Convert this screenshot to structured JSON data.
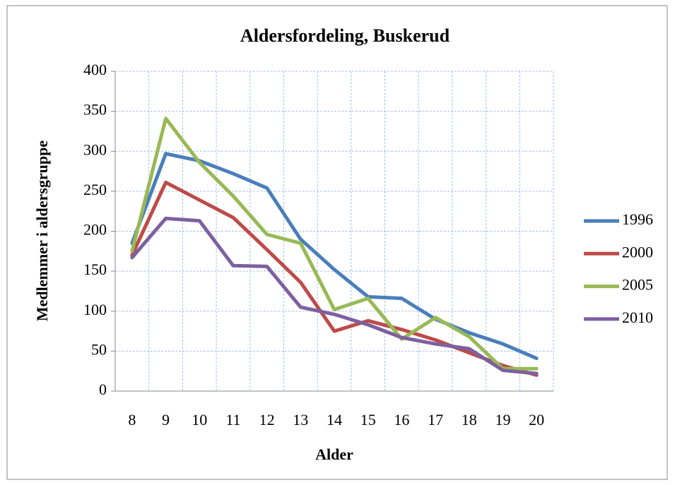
{
  "chart_data": {
    "type": "line",
    "title": "Aldersfordeling, Buskerud",
    "x_label": "Alder",
    "y_label": "Medlemmer i aldersgruppe",
    "categories": [
      8,
      9,
      10,
      11,
      12,
      13,
      14,
      15,
      16,
      17,
      18,
      19,
      20
    ],
    "series": [
      {
        "name": "1996",
        "color": "#4a7ebb",
        "values": [
          185,
          297,
          288,
          272,
          254,
          190,
          152,
          118,
          116,
          90,
          73,
          59,
          41
        ]
      },
      {
        "name": "2000",
        "color": "#be4b48",
        "values": [
          170,
          261,
          239,
          217,
          177,
          136,
          75,
          88,
          77,
          64,
          48,
          32,
          20
        ]
      },
      {
        "name": "2005",
        "color": "#98b954",
        "values": [
          175,
          341,
          286,
          244,
          196,
          185,
          102,
          116,
          65,
          92,
          68,
          28,
          28
        ]
      },
      {
        "name": "2010",
        "color": "#7d60a0",
        "values": [
          167,
          216,
          213,
          157,
          156,
          105,
          96,
          83,
          67,
          59,
          53,
          26,
          22
        ]
      }
    ],
    "ylim": [
      0,
      400
    ],
    "yticks": [
      0,
      50,
      100,
      150,
      200,
      250,
      300,
      350,
      400
    ],
    "grid": true,
    "legend": "right"
  }
}
